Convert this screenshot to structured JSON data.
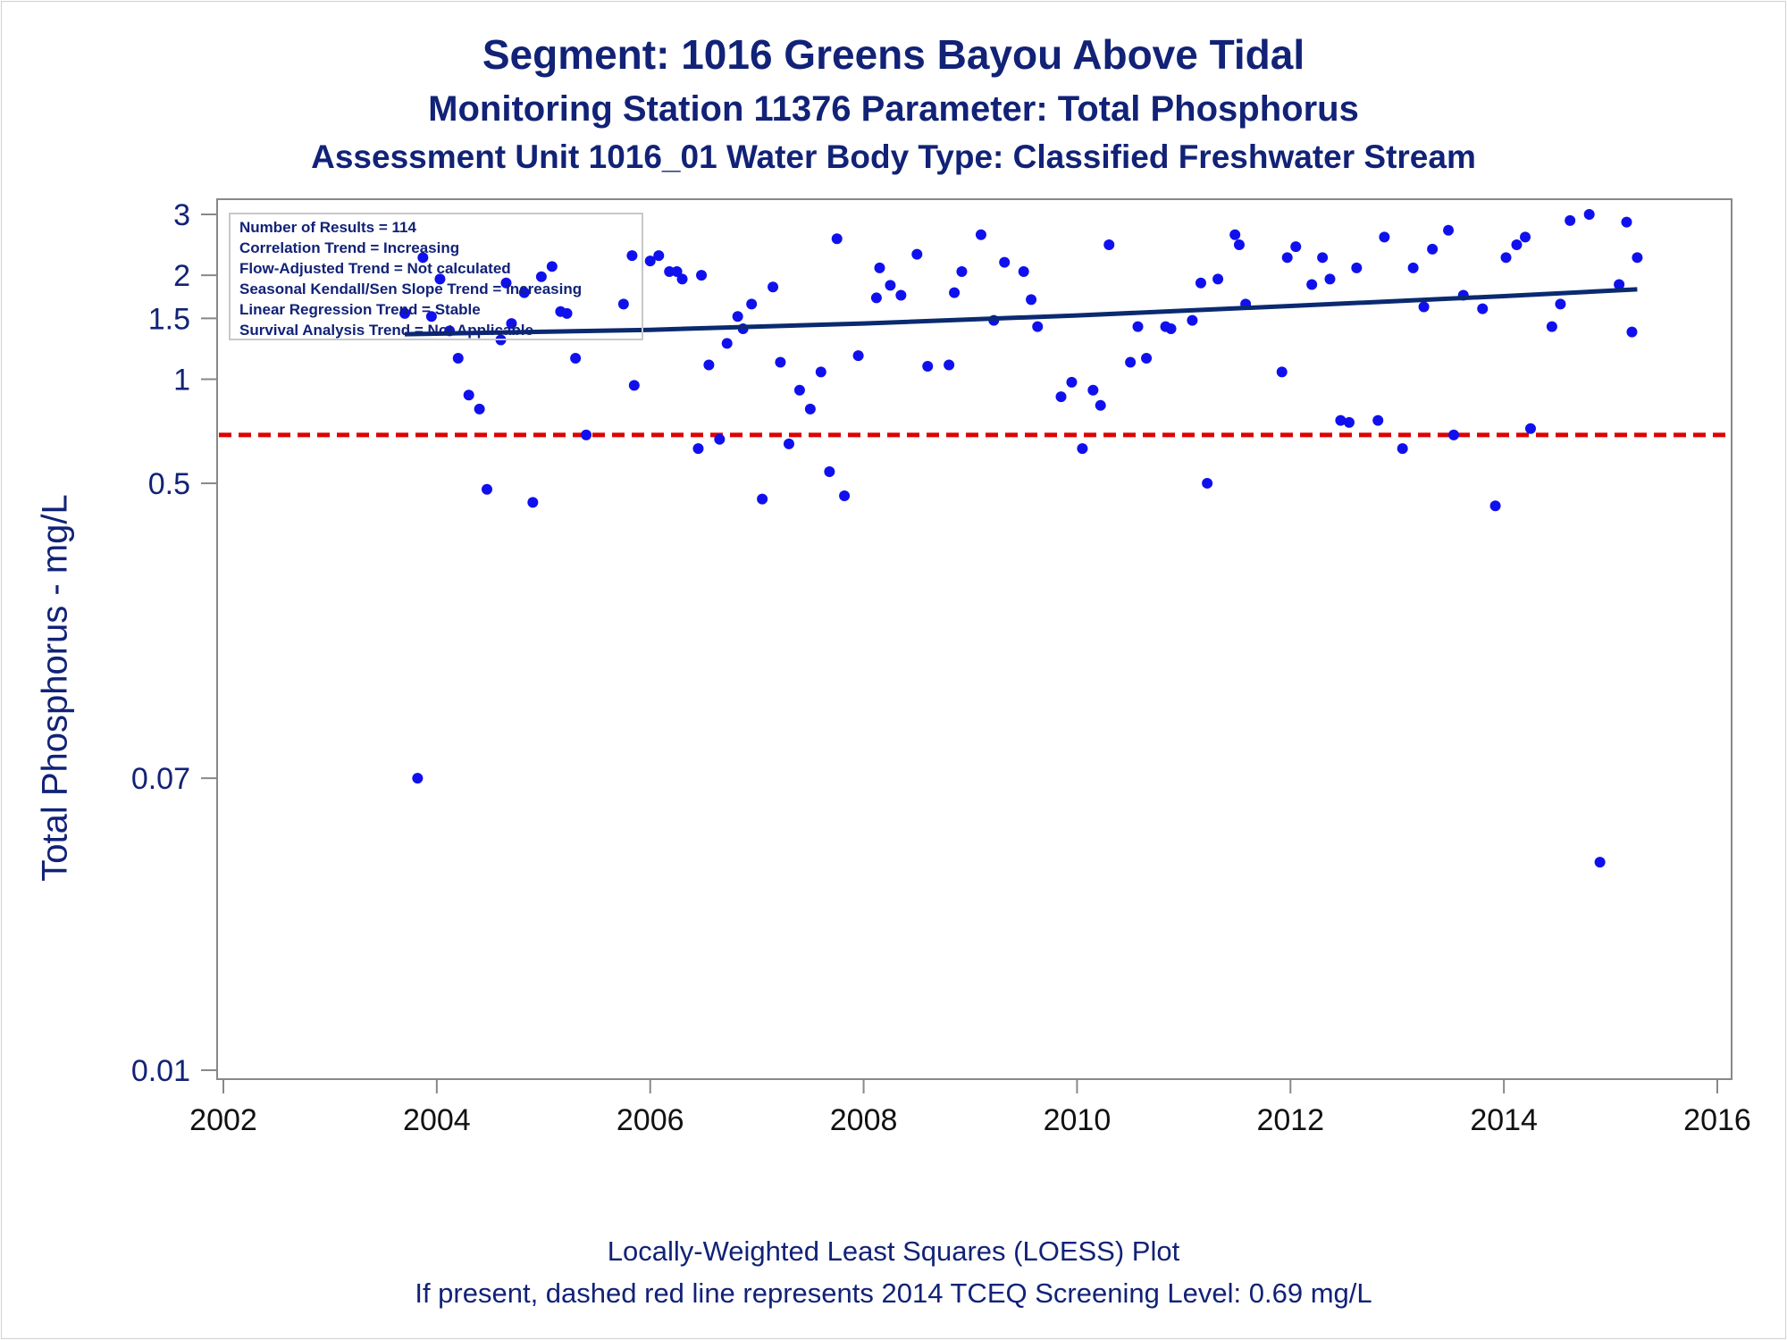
{
  "titles": {
    "line1": "Segment: 1016  Greens Bayou Above Tidal",
    "line2": "Monitoring Station 11376 Parameter: Total Phosphorus",
    "line3": "Assessment Unit 1016_01   Water Body Type: Classified Freshwater Stream"
  },
  "footnotes": {
    "line1": "Locally-Weighted Least Squares (LOESS) Plot",
    "line2": "If present, dashed red line represents 2014 TCEQ Screening Level: 0.69 mg/L"
  },
  "colors": {
    "text": "#112277",
    "points": "#1010ee",
    "trend": "#0a2a70",
    "screening": "#dd0000",
    "axis": "#888888"
  },
  "chart_data": {
    "type": "scatter",
    "ylabel": "Total Phosphorus - mg/L",
    "xlabel": "",
    "xlim": [
      2002,
      2016
    ],
    "ylim": [
      0.01,
      3
    ],
    "yscale": "log",
    "xticks": [
      "2002",
      "2004",
      "2006",
      "2008",
      "2010",
      "2012",
      "2014",
      "2016"
    ],
    "yticks": [
      "0.01",
      "0.07",
      "0.5",
      "1",
      "1.5",
      "2",
      "3"
    ],
    "stats_box": [
      "Number of Results = 114",
      "Correlation Trend = Increasing",
      "Flow-Adjusted Trend = Not calculated",
      "Seasonal Kendall/Sen Slope Trend = Increasing",
      "Linear Regression Trend = Stable",
      "Survival Analysis Trend = Not Applicable"
    ],
    "screening_level": 0.69,
    "trend_line": [
      [
        2003.7,
        1.35
      ],
      [
        2006,
        1.39
      ],
      [
        2008,
        1.45
      ],
      [
        2010,
        1.53
      ],
      [
        2012,
        1.63
      ],
      [
        2014,
        1.74
      ],
      [
        2015.25,
        1.82
      ]
    ],
    "points": [
      [
        2003.7,
        1.55
      ],
      [
        2003.82,
        0.07
      ],
      [
        2003.87,
        2.25
      ],
      [
        2003.95,
        1.52
      ],
      [
        2004.03,
        1.95
      ],
      [
        2004.12,
        1.38
      ],
      [
        2004.2,
        1.15
      ],
      [
        2004.3,
        0.9
      ],
      [
        2004.4,
        0.82
      ],
      [
        2004.47,
        0.48
      ],
      [
        2004.6,
        1.3
      ],
      [
        2004.65,
        1.9
      ],
      [
        2004.7,
        1.45
      ],
      [
        2004.82,
        1.78
      ],
      [
        2004.9,
        0.44
      ],
      [
        2004.98,
        1.98
      ],
      [
        2005.08,
        2.12
      ],
      [
        2005.16,
        1.57
      ],
      [
        2005.22,
        1.55
      ],
      [
        2005.3,
        1.15
      ],
      [
        2005.4,
        0.69
      ],
      [
        2005.75,
        1.65
      ],
      [
        2005.85,
        0.96
      ],
      [
        2005.83,
        2.28
      ],
      [
        2006.0,
        2.2
      ],
      [
        2006.08,
        2.28
      ],
      [
        2006.18,
        2.05
      ],
      [
        2006.25,
        2.05
      ],
      [
        2006.3,
        1.95
      ],
      [
        2006.45,
        0.63
      ],
      [
        2006.48,
        2.0
      ],
      [
        2006.55,
        1.1
      ],
      [
        2006.65,
        0.67
      ],
      [
        2006.72,
        1.27
      ],
      [
        2006.82,
        1.52
      ],
      [
        2006.87,
        1.4
      ],
      [
        2006.95,
        1.65
      ],
      [
        2007.05,
        0.45
      ],
      [
        2007.15,
        1.85
      ],
      [
        2007.22,
        1.12
      ],
      [
        2007.3,
        0.65
      ],
      [
        2007.4,
        0.93
      ],
      [
        2007.5,
        0.82
      ],
      [
        2007.6,
        1.05
      ],
      [
        2007.68,
        0.54
      ],
      [
        2007.75,
        2.55
      ],
      [
        2007.82,
        0.46
      ],
      [
        2007.95,
        1.17
      ],
      [
        2008.12,
        1.72
      ],
      [
        2008.15,
        2.1
      ],
      [
        2008.25,
        1.87
      ],
      [
        2008.35,
        1.75
      ],
      [
        2008.5,
        2.3
      ],
      [
        2008.6,
        1.09
      ],
      [
        2008.8,
        1.1
      ],
      [
        2008.85,
        1.78
      ],
      [
        2008.92,
        2.05
      ],
      [
        2009.1,
        2.62
      ],
      [
        2009.22,
        1.48
      ],
      [
        2009.32,
        2.18
      ],
      [
        2009.5,
        2.05
      ],
      [
        2009.57,
        1.7
      ],
      [
        2009.63,
        1.42
      ],
      [
        2009.85,
        0.89
      ],
      [
        2009.95,
        0.98
      ],
      [
        2010.05,
        0.63
      ],
      [
        2010.15,
        0.93
      ],
      [
        2010.22,
        0.84
      ],
      [
        2010.3,
        2.45
      ],
      [
        2010.5,
        1.12
      ],
      [
        2010.57,
        1.42
      ],
      [
        2010.65,
        1.15
      ],
      [
        2010.83,
        1.42
      ],
      [
        2010.88,
        1.4
      ],
      [
        2011.08,
        1.48
      ],
      [
        2011.16,
        1.9
      ],
      [
        2011.22,
        0.5
      ],
      [
        2011.32,
        1.95
      ],
      [
        2011.48,
        2.62
      ],
      [
        2011.52,
        2.45
      ],
      [
        2011.58,
        1.65
      ],
      [
        2011.92,
        1.05
      ],
      [
        2011.97,
        2.25
      ],
      [
        2012.05,
        2.42
      ],
      [
        2012.2,
        1.88
      ],
      [
        2012.3,
        2.25
      ],
      [
        2012.37,
        1.95
      ],
      [
        2012.47,
        0.76
      ],
      [
        2012.55,
        0.75
      ],
      [
        2012.62,
        2.1
      ],
      [
        2012.82,
        0.76
      ],
      [
        2012.88,
        2.58
      ],
      [
        2013.05,
        0.63
      ],
      [
        2013.15,
        2.1
      ],
      [
        2013.25,
        1.62
      ],
      [
        2013.33,
        2.38
      ],
      [
        2013.48,
        2.7
      ],
      [
        2013.53,
        0.69
      ],
      [
        2013.62,
        1.75
      ],
      [
        2013.8,
        1.6
      ],
      [
        2013.92,
        0.43
      ],
      [
        2014.02,
        2.25
      ],
      [
        2014.12,
        2.45
      ],
      [
        2014.2,
        2.58
      ],
      [
        2014.25,
        0.72
      ],
      [
        2014.45,
        1.42
      ],
      [
        2014.53,
        1.65
      ],
      [
        2014.62,
        2.88
      ],
      [
        2014.8,
        3.0
      ],
      [
        2014.9,
        0.04
      ],
      [
        2015.08,
        1.88
      ],
      [
        2015.15,
        2.85
      ],
      [
        2015.2,
        1.37
      ],
      [
        2015.25,
        2.25
      ]
    ]
  }
}
